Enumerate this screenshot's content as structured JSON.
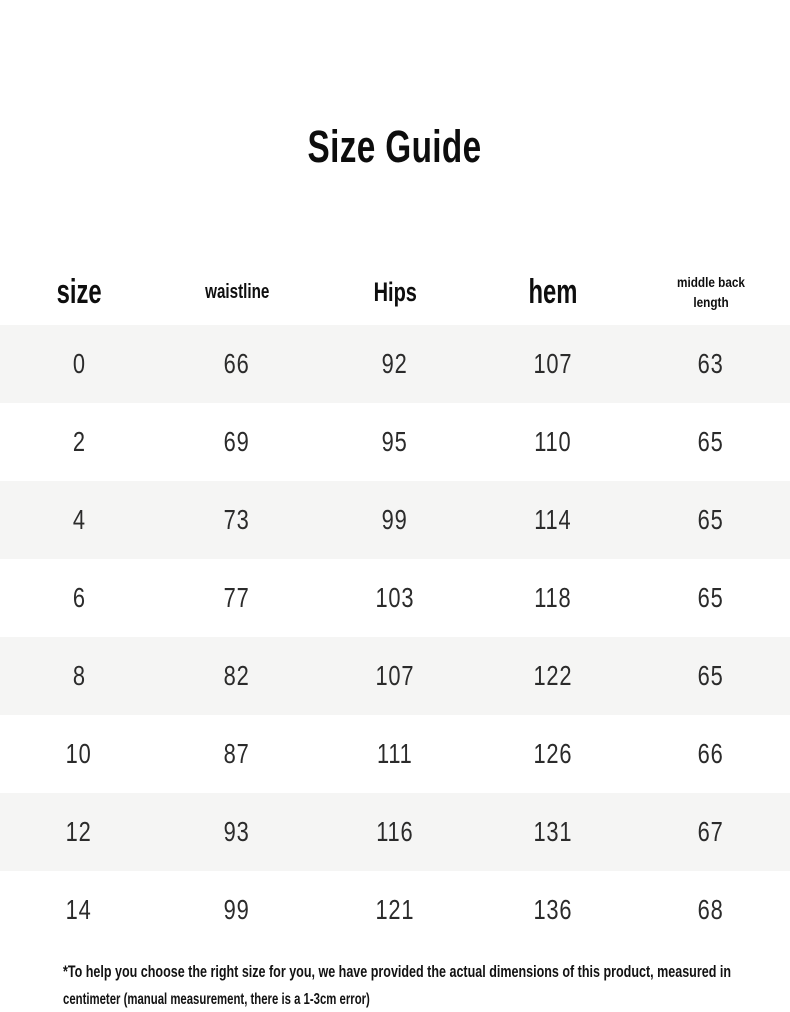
{
  "page": {
    "title": "Size Guide",
    "footnote_line1": "*To help you choose the right size for you, we have provided the actual dimensions of this product, measured in",
    "footnote_line2": "centimeter (manual measurement, there is a 1-3cm error)"
  },
  "table": {
    "columns": [
      {
        "key": "size",
        "label": "size"
      },
      {
        "key": "waistline",
        "label": "waistline"
      },
      {
        "key": "hips",
        "label": "Hips"
      },
      {
        "key": "hem",
        "label": "hem"
      },
      {
        "key": "middle_back_length",
        "label": "middle back length"
      }
    ],
    "rows": [
      {
        "size": "0",
        "waistline": "66",
        "hips": "92",
        "hem": "107",
        "middle_back_length": "63"
      },
      {
        "size": "2",
        "waistline": "69",
        "hips": "95",
        "hem": "110",
        "middle_back_length": "65"
      },
      {
        "size": "4",
        "waistline": "73",
        "hips": "99",
        "hem": "114",
        "middle_back_length": "65"
      },
      {
        "size": "6",
        "waistline": "77",
        "hips": "103",
        "hem": "118",
        "middle_back_length": "65"
      },
      {
        "size": "8",
        "waistline": "82",
        "hips": "107",
        "hem": "122",
        "middle_back_length": "65"
      },
      {
        "size": "10",
        "waistline": "87",
        "hips": "111",
        "hem": "126",
        "middle_back_length": "66"
      },
      {
        "size": "12",
        "waistline": "93",
        "hips": "116",
        "hem": "131",
        "middle_back_length": "67"
      },
      {
        "size": "14",
        "waistline": "99",
        "hips": "121",
        "hem": "136",
        "middle_back_length": "68"
      }
    ],
    "unit": "cm"
  },
  "colors": {
    "background": "#ffffff",
    "text": "#111111",
    "row_alt_bg": "#f5f5f4",
    "cell_text": "#2b2b2b"
  }
}
